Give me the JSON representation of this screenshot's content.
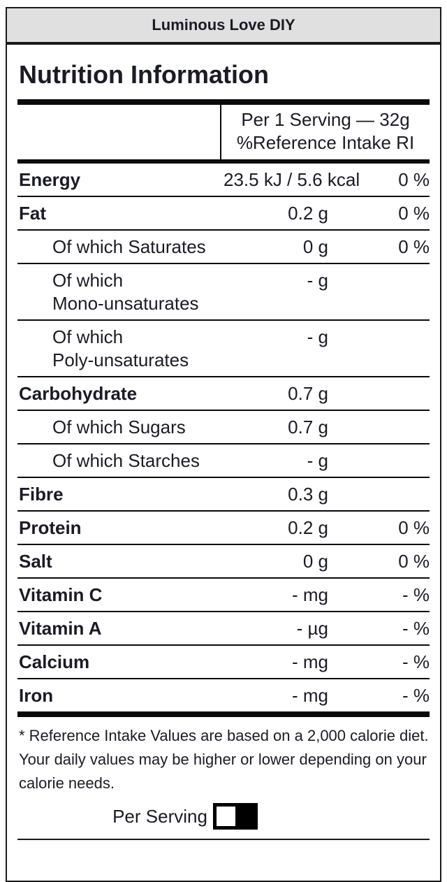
{
  "window": {
    "title": "Luminous Love DIY"
  },
  "label": {
    "title": "Nutrition Information",
    "header": {
      "serving_line": "Per 1 Serving — 32g",
      "ri_line": "%Reference Intake RI"
    },
    "rows": [
      {
        "label": "Energy",
        "value": "23.5 kJ / 5.6 kcal",
        "pct": "0 %",
        "bold": true,
        "indent": false
      },
      {
        "label": "Fat",
        "value": "0.2 g",
        "pct": "0 %",
        "bold": true,
        "indent": false
      },
      {
        "label": "Of which Saturates",
        "value": "0 g",
        "pct": "0 %",
        "bold": false,
        "indent": true
      },
      {
        "label": "Of which",
        "label2": "Mono-unsaturates",
        "value": "- g",
        "pct": "",
        "bold": false,
        "indent": true
      },
      {
        "label": "Of which",
        "label2": "Poly-unsaturates",
        "value": "- g",
        "pct": "",
        "bold": false,
        "indent": true
      },
      {
        "label": "Carbohydrate",
        "value": "0.7 g",
        "pct": "",
        "bold": true,
        "indent": false
      },
      {
        "label": "Of which Sugars",
        "value": "0.7 g",
        "pct": "",
        "bold": false,
        "indent": true
      },
      {
        "label": "Of which Starches",
        "value": "- g",
        "pct": "",
        "bold": false,
        "indent": true
      },
      {
        "label": "Fibre",
        "value": "0.3 g",
        "pct": "",
        "bold": true,
        "indent": false
      },
      {
        "label": "Protein",
        "value": "0.2 g",
        "pct": "0 %",
        "bold": true,
        "indent": false
      },
      {
        "label": "Salt",
        "value": "0 g",
        "pct": "0 %",
        "bold": true,
        "indent": false
      },
      {
        "label": "Vitamin C",
        "value": "- mg",
        "pct": "- %",
        "bold": true,
        "indent": false
      },
      {
        "label": "Vitamin A",
        "value": "- µg",
        "pct": "- %",
        "bold": true,
        "indent": false
      },
      {
        "label": "Calcium",
        "value": "- mg",
        "pct": "- %",
        "bold": true,
        "indent": false
      },
      {
        "label": "Iron",
        "value": "- mg",
        "pct": "- %",
        "bold": true,
        "indent": false
      }
    ],
    "footnote_lines": [
      "* Reference Intake Values are based on a 2,000 calorie diet.",
      "Your daily values may be higher or lower depending on your",
      "calorie needs."
    ],
    "toggle": {
      "label": "Per Serving",
      "state": "off"
    }
  },
  "colors": {
    "text": "#1b1b26",
    "border": "#1a1a1a",
    "bar": "#0a0a0a",
    "title_bar_bg": "#e0e0e0",
    "toggle_bg": "#000000",
    "toggle_knob": "#ffffff"
  }
}
